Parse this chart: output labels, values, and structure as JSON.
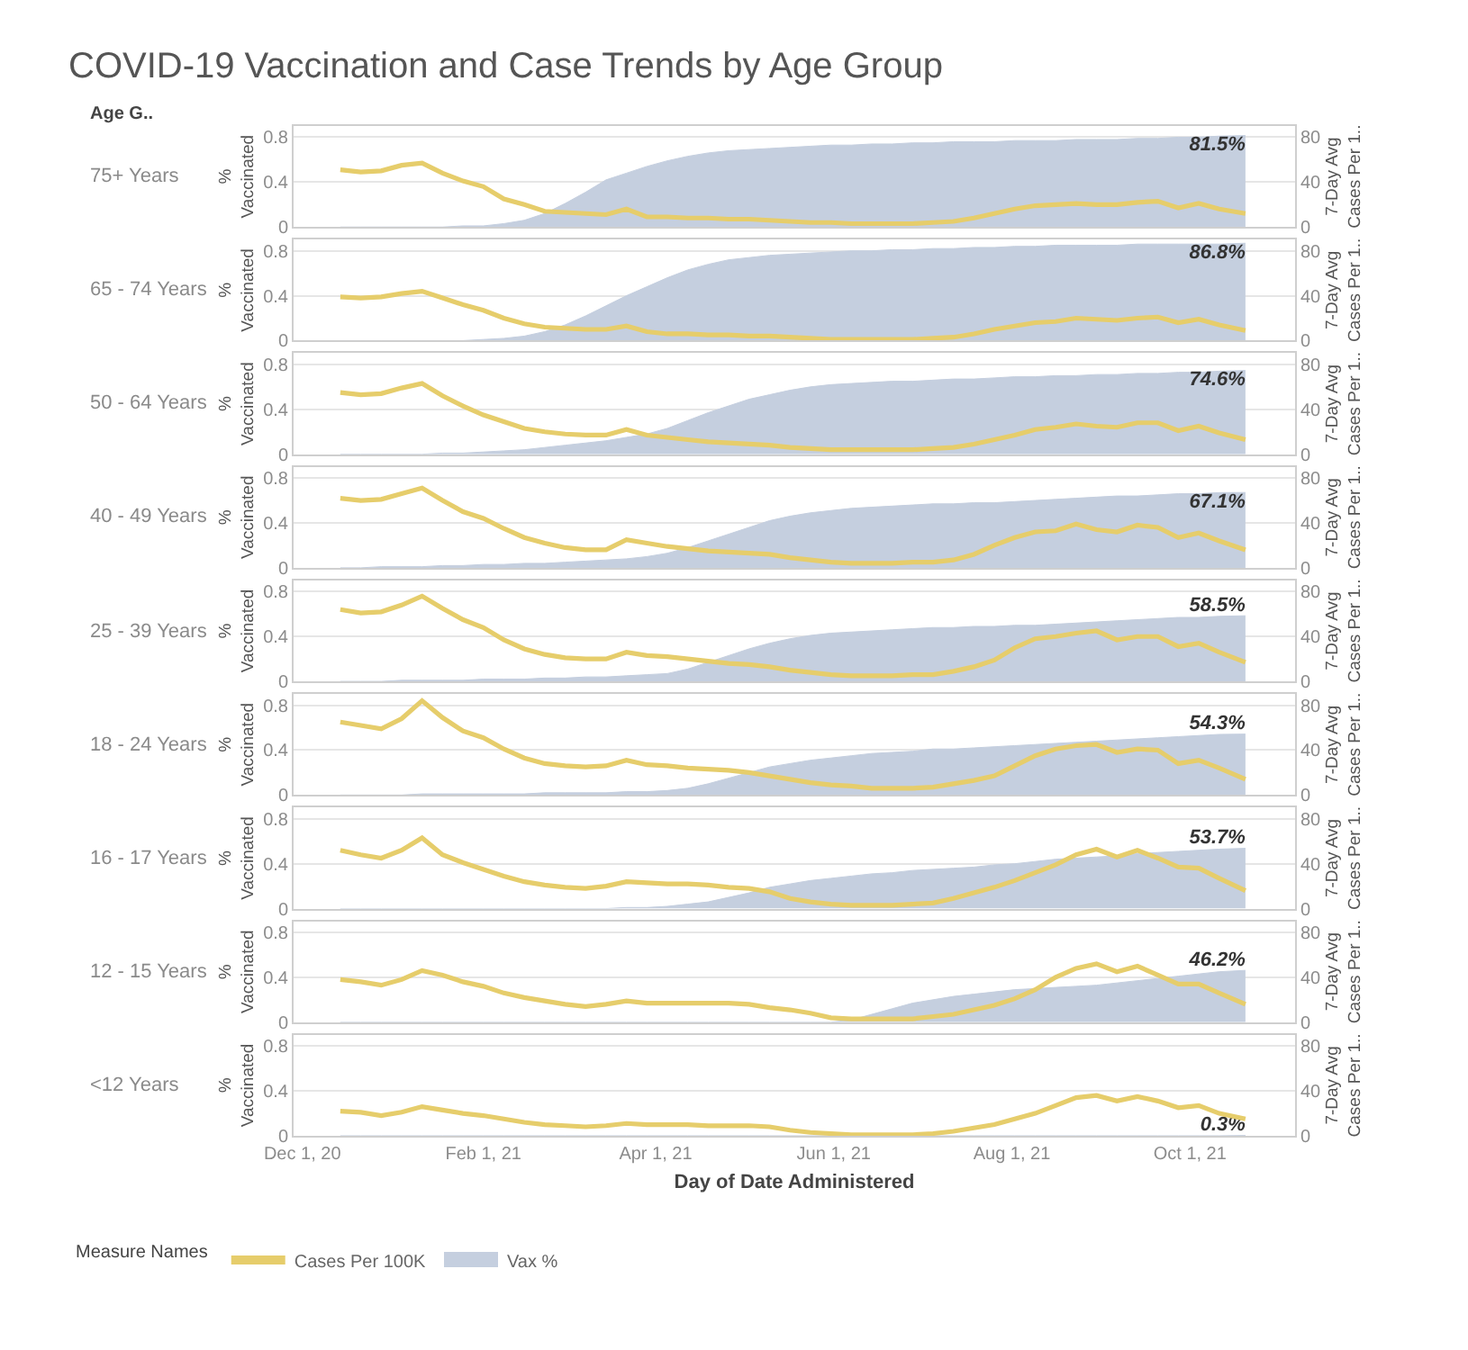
{
  "chart_data": [
    {
      "type": "area",
      "title": "COVID-19 Vaccination and Case Trends by Age Group",
      "subtitle": "75+ Years",
      "annotations": [
        "Age G.."
      ],
      "ylabel": "% Vaccinated",
      "y2label": "7-Day Avg Cases Per 1..",
      "x": [
        "2020-12-14",
        "2020-12-21",
        "2020-12-28",
        "2021-01-04",
        "2021-01-11",
        "2021-01-18",
        "2021-01-25",
        "2021-02-01",
        "2021-02-08",
        "2021-02-15",
        "2021-02-22",
        "2021-03-01",
        "2021-03-08",
        "2021-03-15",
        "2021-03-22",
        "2021-03-29",
        "2021-04-05",
        "2021-04-12",
        "2021-04-19",
        "2021-04-26",
        "2021-05-03",
        "2021-05-10",
        "2021-05-17",
        "2021-05-24",
        "2021-05-31",
        "2021-06-07",
        "2021-06-14",
        "2021-06-21",
        "2021-06-28",
        "2021-07-05",
        "2021-07-12",
        "2021-07-19",
        "2021-07-26",
        "2021-08-02",
        "2021-08-09",
        "2021-08-16",
        "2021-08-23",
        "2021-08-30",
        "2021-09-06",
        "2021-09-13",
        "2021-09-20",
        "2021-09-27",
        "2021-10-04",
        "2021-10-11",
        "2021-10-20"
      ],
      "series": [
        {
          "type": "line",
          "axis": "y2",
          "color": "#e6cd6b",
          "values": [
            51,
            49,
            50,
            55,
            57,
            48,
            41,
            36,
            25,
            20,
            14,
            13,
            12,
            11,
            16,
            9,
            9,
            8,
            8,
            7,
            7,
            6,
            5,
            4,
            4,
            3,
            3,
            3,
            3,
            4,
            5,
            8,
            12,
            16,
            19,
            20,
            21,
            20,
            20,
            22,
            23,
            17,
            21,
            16,
            12
          ]
        },
        {
          "color": "#c5cfdf",
          "values": [
            0,
            0,
            0,
            0,
            0,
            0,
            0.01,
            0.01,
            0.03,
            0.06,
            0.12,
            0.21,
            0.31,
            0.42,
            0.48,
            0.54,
            0.59,
            0.63,
            0.66,
            0.68,
            0.69,
            0.7,
            0.71,
            0.72,
            0.73,
            0.73,
            0.74,
            0.74,
            0.75,
            0.75,
            0.76,
            0.76,
            0.76,
            0.77,
            0.77,
            0.77,
            0.78,
            0.78,
            0.78,
            0.79,
            0.79,
            0.8,
            0.8,
            0.81,
            0.815
          ],
          "value_labels": [
            null,
            null,
            null,
            null,
            null,
            null,
            null,
            null,
            null,
            null,
            null,
            null,
            null,
            null,
            null,
            null,
            null,
            null,
            null,
            null,
            null,
            null,
            null,
            null,
            null,
            null,
            null,
            null,
            null,
            null,
            null,
            null,
            null,
            null,
            null,
            null,
            null,
            null,
            null,
            null,
            null,
            null,
            null,
            null,
            "81.5%"
          ]
        }
      ],
      "xlim": [
        "2020-11-28",
        "2021-11-06"
      ],
      "ylim": [
        0,
        0.9
      ],
      "yticks": [
        0,
        0.4,
        0.8
      ],
      "y2lim": [
        0,
        90
      ],
      "y2ticks": [
        0,
        40,
        80
      ],
      "grid": "y",
      "tick_labels": "y"
    },
    {
      "type": "area",
      "subtitle": "65 - 74 Years",
      "ylabel": "% Vaccinated",
      "y2label": "7-Day Avg Cases Per 1..",
      "x": [
        "2020-12-14",
        "2020-12-21",
        "2020-12-28",
        "2021-01-04",
        "2021-01-11",
        "2021-01-18",
        "2021-01-25",
        "2021-02-01",
        "2021-02-08",
        "2021-02-15",
        "2021-02-22",
        "2021-03-01",
        "2021-03-08",
        "2021-03-15",
        "2021-03-22",
        "2021-03-29",
        "2021-04-05",
        "2021-04-12",
        "2021-04-19",
        "2021-04-26",
        "2021-05-03",
        "2021-05-10",
        "2021-05-17",
        "2021-05-24",
        "2021-05-31",
        "2021-06-07",
        "2021-06-14",
        "2021-06-21",
        "2021-06-28",
        "2021-07-05",
        "2021-07-12",
        "2021-07-19",
        "2021-07-26",
        "2021-08-02",
        "2021-08-09",
        "2021-08-16",
        "2021-08-23",
        "2021-08-30",
        "2021-09-06",
        "2021-09-13",
        "2021-09-20",
        "2021-09-27",
        "2021-10-04",
        "2021-10-11",
        "2021-10-20"
      ],
      "series": [
        {
          "type": "line",
          "axis": "y2",
          "color": "#e6cd6b",
          "values": [
            39,
            38,
            39,
            42,
            44,
            38,
            32,
            27,
            20,
            15,
            12,
            11,
            10,
            10,
            13,
            8,
            6,
            6,
            5,
            5,
            4,
            4,
            3,
            2,
            1,
            1,
            1,
            1,
            1,
            2,
            3,
            6,
            10,
            13,
            16,
            17,
            20,
            19,
            18,
            20,
            21,
            16,
            19,
            14,
            9
          ]
        },
        {
          "color": "#c5cfdf",
          "values": [
            0,
            0,
            0,
            0,
            0,
            0,
            0,
            0.01,
            0.02,
            0.04,
            0.08,
            0.14,
            0.22,
            0.31,
            0.4,
            0.48,
            0.56,
            0.63,
            0.68,
            0.72,
            0.74,
            0.76,
            0.77,
            0.78,
            0.79,
            0.8,
            0.8,
            0.81,
            0.81,
            0.82,
            0.82,
            0.83,
            0.83,
            0.84,
            0.84,
            0.85,
            0.85,
            0.85,
            0.85,
            0.86,
            0.86,
            0.86,
            0.86,
            0.86,
            0.868
          ],
          "value_labels": [
            null,
            null,
            null,
            null,
            null,
            null,
            null,
            null,
            null,
            null,
            null,
            null,
            null,
            null,
            null,
            null,
            null,
            null,
            null,
            null,
            null,
            null,
            null,
            null,
            null,
            null,
            null,
            null,
            null,
            null,
            null,
            null,
            null,
            null,
            null,
            null,
            null,
            null,
            null,
            null,
            null,
            null,
            null,
            null,
            "86.8%"
          ]
        }
      ],
      "xlim": [
        "2020-11-28",
        "2021-11-06"
      ],
      "ylim": [
        0,
        0.9
      ],
      "yticks": [
        0,
        0.4,
        0.8
      ],
      "y2lim": [
        0,
        90
      ],
      "y2ticks": [
        0,
        40,
        80
      ],
      "grid": "y",
      "tick_labels": "y"
    },
    {
      "type": "area",
      "subtitle": "50 - 64 Years",
      "ylabel": "% Vaccinated",
      "y2label": "7-Day Avg Cases Per 1..",
      "x": [
        "2020-12-14",
        "2020-12-21",
        "2020-12-28",
        "2021-01-04",
        "2021-01-11",
        "2021-01-18",
        "2021-01-25",
        "2021-02-01",
        "2021-02-08",
        "2021-02-15",
        "2021-02-22",
        "2021-03-01",
        "2021-03-08",
        "2021-03-15",
        "2021-03-22",
        "2021-03-29",
        "2021-04-05",
        "2021-04-12",
        "2021-04-19",
        "2021-04-26",
        "2021-05-03",
        "2021-05-10",
        "2021-05-17",
        "2021-05-24",
        "2021-05-31",
        "2021-06-07",
        "2021-06-14",
        "2021-06-21",
        "2021-06-28",
        "2021-07-05",
        "2021-07-12",
        "2021-07-19",
        "2021-07-26",
        "2021-08-02",
        "2021-08-09",
        "2021-08-16",
        "2021-08-23",
        "2021-08-30",
        "2021-09-06",
        "2021-09-13",
        "2021-09-20",
        "2021-09-27",
        "2021-10-04",
        "2021-10-11",
        "2021-10-20"
      ],
      "series": [
        {
          "type": "line",
          "axis": "y2",
          "color": "#e6cd6b",
          "values": [
            55,
            53,
            54,
            59,
            63,
            52,
            43,
            35,
            29,
            23,
            20,
            18,
            17,
            17,
            22,
            17,
            15,
            13,
            11,
            10,
            9,
            8,
            6,
            5,
            4,
            4,
            4,
            4,
            4,
            5,
            6,
            9,
            13,
            17,
            22,
            24,
            27,
            25,
            24,
            28,
            28,
            21,
            25,
            19,
            13
          ]
        },
        {
          "color": "#c5cfdf",
          "values": [
            0,
            0,
            0,
            0,
            0,
            0.01,
            0.01,
            0.02,
            0.03,
            0.04,
            0.06,
            0.08,
            0.1,
            0.12,
            0.15,
            0.18,
            0.23,
            0.3,
            0.37,
            0.43,
            0.49,
            0.53,
            0.57,
            0.6,
            0.62,
            0.63,
            0.64,
            0.65,
            0.65,
            0.66,
            0.67,
            0.67,
            0.68,
            0.69,
            0.69,
            0.7,
            0.7,
            0.71,
            0.71,
            0.72,
            0.72,
            0.73,
            0.73,
            0.74,
            0.746
          ],
          "value_labels": [
            null,
            null,
            null,
            null,
            null,
            null,
            null,
            null,
            null,
            null,
            null,
            null,
            null,
            null,
            null,
            null,
            null,
            null,
            null,
            null,
            null,
            null,
            null,
            null,
            null,
            null,
            null,
            null,
            null,
            null,
            null,
            null,
            null,
            null,
            null,
            null,
            null,
            null,
            null,
            null,
            null,
            null,
            null,
            null,
            "74.6%"
          ]
        }
      ],
      "xlim": [
        "2020-11-28",
        "2021-11-06"
      ],
      "ylim": [
        0,
        0.9
      ],
      "yticks": [
        0,
        0.4,
        0.8
      ],
      "y2lim": [
        0,
        90
      ],
      "y2ticks": [
        0,
        40,
        80
      ],
      "grid": "y",
      "tick_labels": "y"
    },
    {
      "type": "area",
      "subtitle": "40 - 49 Years",
      "ylabel": "% Vaccinated",
      "y2label": "7-Day Avg Cases Per 1..",
      "x": [
        "2020-12-14",
        "2020-12-21",
        "2020-12-28",
        "2021-01-04",
        "2021-01-11",
        "2021-01-18",
        "2021-01-25",
        "2021-02-01",
        "2021-02-08",
        "2021-02-15",
        "2021-02-22",
        "2021-03-01",
        "2021-03-08",
        "2021-03-15",
        "2021-03-22",
        "2021-03-29",
        "2021-04-05",
        "2021-04-12",
        "2021-04-19",
        "2021-04-26",
        "2021-05-03",
        "2021-05-10",
        "2021-05-17",
        "2021-05-24",
        "2021-05-31",
        "2021-06-07",
        "2021-06-14",
        "2021-06-21",
        "2021-06-28",
        "2021-07-05",
        "2021-07-12",
        "2021-07-19",
        "2021-07-26",
        "2021-08-02",
        "2021-08-09",
        "2021-08-16",
        "2021-08-23",
        "2021-08-30",
        "2021-09-06",
        "2021-09-13",
        "2021-09-20",
        "2021-09-27",
        "2021-10-04",
        "2021-10-11",
        "2021-10-20"
      ],
      "series": [
        {
          "type": "line",
          "axis": "y2",
          "color": "#e6cd6b",
          "values": [
            62,
            60,
            61,
            66,
            71,
            60,
            50,
            44,
            35,
            27,
            22,
            18,
            16,
            16,
            25,
            22,
            19,
            17,
            15,
            14,
            13,
            12,
            9,
            7,
            5,
            4,
            4,
            4,
            5,
            5,
            7,
            12,
            20,
            27,
            32,
            33,
            39,
            34,
            32,
            38,
            36,
            27,
            31,
            24,
            16
          ]
        },
        {
          "color": "#c5cfdf",
          "values": [
            0,
            0,
            0.01,
            0.01,
            0.01,
            0.02,
            0.02,
            0.03,
            0.03,
            0.04,
            0.04,
            0.05,
            0.06,
            0.07,
            0.08,
            0.1,
            0.13,
            0.18,
            0.24,
            0.3,
            0.36,
            0.42,
            0.46,
            0.49,
            0.51,
            0.53,
            0.54,
            0.55,
            0.56,
            0.57,
            0.57,
            0.58,
            0.58,
            0.59,
            0.6,
            0.61,
            0.62,
            0.63,
            0.64,
            0.64,
            0.65,
            0.66,
            0.66,
            0.67,
            0.671
          ],
          "value_labels": [
            null,
            null,
            null,
            null,
            null,
            null,
            null,
            null,
            null,
            null,
            null,
            null,
            null,
            null,
            null,
            null,
            null,
            null,
            null,
            null,
            null,
            null,
            null,
            null,
            null,
            null,
            null,
            null,
            null,
            null,
            null,
            null,
            null,
            null,
            null,
            null,
            null,
            null,
            null,
            null,
            null,
            null,
            null,
            null,
            "67.1%"
          ]
        }
      ],
      "xlim": [
        "2020-11-28",
        "2021-11-06"
      ],
      "ylim": [
        0,
        0.9
      ],
      "yticks": [
        0,
        0.4,
        0.8
      ],
      "y2lim": [
        0,
        90
      ],
      "y2ticks": [
        0,
        40,
        80
      ],
      "grid": "y",
      "tick_labels": "y"
    },
    {
      "type": "area",
      "subtitle": "25 - 39 Years",
      "ylabel": "% Vaccinated",
      "y2label": "7-Day Avg Cases Per 1..",
      "x": [
        "2020-12-14",
        "2020-12-21",
        "2020-12-28",
        "2021-01-04",
        "2021-01-11",
        "2021-01-18",
        "2021-01-25",
        "2021-02-01",
        "2021-02-08",
        "2021-02-15",
        "2021-02-22",
        "2021-03-01",
        "2021-03-08",
        "2021-03-15",
        "2021-03-22",
        "2021-03-29",
        "2021-04-05",
        "2021-04-12",
        "2021-04-19",
        "2021-04-26",
        "2021-05-03",
        "2021-05-10",
        "2021-05-17",
        "2021-05-24",
        "2021-05-31",
        "2021-06-07",
        "2021-06-14",
        "2021-06-21",
        "2021-06-28",
        "2021-07-05",
        "2021-07-12",
        "2021-07-19",
        "2021-07-26",
        "2021-08-02",
        "2021-08-09",
        "2021-08-16",
        "2021-08-23",
        "2021-08-30",
        "2021-09-06",
        "2021-09-13",
        "2021-09-20",
        "2021-09-27",
        "2021-10-04",
        "2021-10-11",
        "2021-10-20"
      ],
      "series": [
        {
          "type": "line",
          "axis": "y2",
          "color": "#e6cd6b",
          "values": [
            64,
            61,
            62,
            68,
            76,
            65,
            55,
            48,
            37,
            29,
            24,
            21,
            20,
            20,
            26,
            23,
            22,
            20,
            18,
            16,
            15,
            13,
            10,
            8,
            6,
            5,
            5,
            5,
            6,
            6,
            9,
            13,
            19,
            30,
            38,
            40,
            43,
            45,
            37,
            40,
            40,
            31,
            34,
            26,
            17
          ]
        },
        {
          "color": "#c5cfdf",
          "values": [
            0,
            0,
            0,
            0.01,
            0.01,
            0.01,
            0.01,
            0.02,
            0.02,
            0.02,
            0.03,
            0.03,
            0.04,
            0.04,
            0.05,
            0.06,
            0.07,
            0.11,
            0.17,
            0.23,
            0.29,
            0.34,
            0.38,
            0.41,
            0.43,
            0.44,
            0.45,
            0.46,
            0.47,
            0.48,
            0.48,
            0.49,
            0.49,
            0.5,
            0.5,
            0.51,
            0.52,
            0.53,
            0.54,
            0.55,
            0.56,
            0.57,
            0.57,
            0.58,
            0.585
          ],
          "value_labels": [
            null,
            null,
            null,
            null,
            null,
            null,
            null,
            null,
            null,
            null,
            null,
            null,
            null,
            null,
            null,
            null,
            null,
            null,
            null,
            null,
            null,
            null,
            null,
            null,
            null,
            null,
            null,
            null,
            null,
            null,
            null,
            null,
            null,
            null,
            null,
            null,
            null,
            null,
            null,
            null,
            null,
            null,
            null,
            null,
            "58.5%"
          ]
        }
      ],
      "xlim": [
        "2020-11-28",
        "2021-11-06"
      ],
      "ylim": [
        0,
        0.9
      ],
      "yticks": [
        0,
        0.4,
        0.8
      ],
      "y2lim": [
        0,
        90
      ],
      "y2ticks": [
        0,
        40,
        80
      ],
      "grid": "y",
      "tick_labels": "y"
    },
    {
      "type": "area",
      "subtitle": "18 - 24 Years",
      "ylabel": "% Vaccinated",
      "y2label": "7-Day Avg Cases Per 1..",
      "x": [
        "2020-12-14",
        "2020-12-21",
        "2020-12-28",
        "2021-01-04",
        "2021-01-11",
        "2021-01-18",
        "2021-01-25",
        "2021-02-01",
        "2021-02-08",
        "2021-02-15",
        "2021-02-22",
        "2021-03-01",
        "2021-03-08",
        "2021-03-15",
        "2021-03-22",
        "2021-03-29",
        "2021-04-05",
        "2021-04-12",
        "2021-04-19",
        "2021-04-26",
        "2021-05-03",
        "2021-05-10",
        "2021-05-17",
        "2021-05-24",
        "2021-05-31",
        "2021-06-07",
        "2021-06-14",
        "2021-06-21",
        "2021-06-28",
        "2021-07-05",
        "2021-07-12",
        "2021-07-19",
        "2021-07-26",
        "2021-08-02",
        "2021-08-09",
        "2021-08-16",
        "2021-08-23",
        "2021-08-30",
        "2021-09-06",
        "2021-09-13",
        "2021-09-20",
        "2021-09-27",
        "2021-10-04",
        "2021-10-11",
        "2021-10-20"
      ],
      "series": [
        {
          "type": "line",
          "axis": "y2",
          "color": "#e6cd6b",
          "values": [
            65,
            62,
            59,
            68,
            84,
            69,
            57,
            51,
            41,
            33,
            28,
            26,
            25,
            26,
            31,
            27,
            26,
            24,
            23,
            22,
            20,
            17,
            14,
            11,
            9,
            8,
            6,
            6,
            6,
            7,
            10,
            13,
            17,
            26,
            35,
            41,
            44,
            45,
            38,
            41,
            40,
            28,
            31,
            24,
            14
          ]
        },
        {
          "color": "#c5cfdf",
          "values": [
            0,
            0,
            0,
            0,
            0.01,
            0.01,
            0.01,
            0.01,
            0.01,
            0.01,
            0.02,
            0.02,
            0.02,
            0.02,
            0.03,
            0.03,
            0.04,
            0.06,
            0.1,
            0.15,
            0.2,
            0.25,
            0.28,
            0.31,
            0.33,
            0.35,
            0.37,
            0.38,
            0.39,
            0.41,
            0.41,
            0.42,
            0.43,
            0.44,
            0.45,
            0.46,
            0.47,
            0.48,
            0.49,
            0.5,
            0.51,
            0.52,
            0.53,
            0.54,
            0.543
          ],
          "value_labels": [
            null,
            null,
            null,
            null,
            null,
            null,
            null,
            null,
            null,
            null,
            null,
            null,
            null,
            null,
            null,
            null,
            null,
            null,
            null,
            null,
            null,
            null,
            null,
            null,
            null,
            null,
            null,
            null,
            null,
            null,
            null,
            null,
            null,
            null,
            null,
            null,
            null,
            null,
            null,
            null,
            null,
            null,
            null,
            null,
            "54.3%"
          ]
        }
      ],
      "xlim": [
        "2020-11-28",
        "2021-11-06"
      ],
      "ylim": [
        0,
        0.9
      ],
      "yticks": [
        0,
        0.4,
        0.8
      ],
      "y2lim": [
        0,
        90
      ],
      "y2ticks": [
        0,
        40,
        80
      ],
      "grid": "y",
      "tick_labels": "y"
    },
    {
      "type": "area",
      "subtitle": "16 - 17 Years",
      "ylabel": "% Vaccinated",
      "y2label": "7-Day Avg Cases Per 1..",
      "x": [
        "2020-12-14",
        "2020-12-21",
        "2020-12-28",
        "2021-01-04",
        "2021-01-11",
        "2021-01-18",
        "2021-01-25",
        "2021-02-01",
        "2021-02-08",
        "2021-02-15",
        "2021-02-22",
        "2021-03-01",
        "2021-03-08",
        "2021-03-15",
        "2021-03-22",
        "2021-03-29",
        "2021-04-05",
        "2021-04-12",
        "2021-04-19",
        "2021-04-26",
        "2021-05-03",
        "2021-05-10",
        "2021-05-17",
        "2021-05-24",
        "2021-05-31",
        "2021-06-07",
        "2021-06-14",
        "2021-06-21",
        "2021-06-28",
        "2021-07-05",
        "2021-07-12",
        "2021-07-19",
        "2021-07-26",
        "2021-08-02",
        "2021-08-09",
        "2021-08-16",
        "2021-08-23",
        "2021-08-30",
        "2021-09-06",
        "2021-09-13",
        "2021-09-20",
        "2021-09-27",
        "2021-10-04",
        "2021-10-11",
        "2021-10-20"
      ],
      "series": [
        {
          "type": "line",
          "axis": "y2",
          "color": "#e6cd6b",
          "values": [
            52,
            48,
            45,
            52,
            63,
            48,
            41,
            35,
            29,
            24,
            21,
            19,
            18,
            20,
            24,
            23,
            22,
            22,
            21,
            19,
            18,
            15,
            9,
            6,
            4,
            3,
            3,
            3,
            4,
            5,
            9,
            14,
            19,
            25,
            32,
            39,
            48,
            53,
            46,
            52,
            45,
            37,
            36,
            27,
            16
          ]
        },
        {
          "color": "#c5cfdf",
          "values": [
            0,
            0,
            0,
            0,
            0,
            0,
            0,
            0,
            0,
            0,
            0,
            0,
            0,
            0,
            0.01,
            0.01,
            0.02,
            0.04,
            0.06,
            0.1,
            0.14,
            0.19,
            0.22,
            0.25,
            0.27,
            0.29,
            0.31,
            0.32,
            0.34,
            0.35,
            0.36,
            0.37,
            0.39,
            0.4,
            0.42,
            0.44,
            0.45,
            0.46,
            0.47,
            0.49,
            0.5,
            0.51,
            0.52,
            0.53,
            0.537
          ],
          "value_labels": [
            null,
            null,
            null,
            null,
            null,
            null,
            null,
            null,
            null,
            null,
            null,
            null,
            null,
            null,
            null,
            null,
            null,
            null,
            null,
            null,
            null,
            null,
            null,
            null,
            null,
            null,
            null,
            null,
            null,
            null,
            null,
            null,
            null,
            null,
            null,
            null,
            null,
            null,
            null,
            null,
            null,
            null,
            null,
            null,
            "53.7%"
          ]
        }
      ],
      "xlim": [
        "2020-11-28",
        "2021-11-06"
      ],
      "ylim": [
        0,
        0.9
      ],
      "yticks": [
        0,
        0.4,
        0.8
      ],
      "y2lim": [
        0,
        90
      ],
      "y2ticks": [
        0,
        40,
        80
      ],
      "grid": "y",
      "tick_labels": "y"
    },
    {
      "type": "area",
      "subtitle": "12 - 15 Years",
      "ylabel": "% Vaccinated",
      "y2label": "7-Day Avg Cases Per 1..",
      "x": [
        "2020-12-14",
        "2020-12-21",
        "2020-12-28",
        "2021-01-04",
        "2021-01-11",
        "2021-01-18",
        "2021-01-25",
        "2021-02-01",
        "2021-02-08",
        "2021-02-15",
        "2021-02-22",
        "2021-03-01",
        "2021-03-08",
        "2021-03-15",
        "2021-03-22",
        "2021-03-29",
        "2021-04-05",
        "2021-04-12",
        "2021-04-19",
        "2021-04-26",
        "2021-05-03",
        "2021-05-10",
        "2021-05-17",
        "2021-05-24",
        "2021-05-31",
        "2021-06-07",
        "2021-06-14",
        "2021-06-21",
        "2021-06-28",
        "2021-07-05",
        "2021-07-12",
        "2021-07-19",
        "2021-07-26",
        "2021-08-02",
        "2021-08-09",
        "2021-08-16",
        "2021-08-23",
        "2021-08-30",
        "2021-09-06",
        "2021-09-13",
        "2021-09-20",
        "2021-09-27",
        "2021-10-04",
        "2021-10-11",
        "2021-10-20"
      ],
      "series": [
        {
          "type": "line",
          "axis": "y2",
          "color": "#e6cd6b",
          "values": [
            38,
            36,
            33,
            38,
            46,
            42,
            36,
            32,
            26,
            22,
            19,
            16,
            14,
            16,
            19,
            17,
            17,
            17,
            17,
            17,
            16,
            13,
            11,
            8,
            4,
            3,
            3,
            3,
            3,
            5,
            7,
            11,
            15,
            21,
            29,
            40,
            48,
            52,
            45,
            50,
            42,
            34,
            34,
            26,
            16
          ]
        },
        {
          "color": "#c5cfdf",
          "values": [
            0,
            0,
            0,
            0,
            0,
            0,
            0,
            0,
            0,
            0,
            0,
            0,
            0,
            0,
            0,
            0,
            0,
            0,
            0,
            0,
            0,
            0,
            0,
            0,
            0,
            0.02,
            0.07,
            0.12,
            0.17,
            0.2,
            0.23,
            0.25,
            0.27,
            0.29,
            0.3,
            0.31,
            0.32,
            0.33,
            0.35,
            0.37,
            0.39,
            0.41,
            0.43,
            0.45,
            0.462
          ],
          "value_labels": [
            null,
            null,
            null,
            null,
            null,
            null,
            null,
            null,
            null,
            null,
            null,
            null,
            null,
            null,
            null,
            null,
            null,
            null,
            null,
            null,
            null,
            null,
            null,
            null,
            null,
            null,
            null,
            null,
            null,
            null,
            null,
            null,
            null,
            null,
            null,
            null,
            null,
            null,
            null,
            null,
            null,
            null,
            null,
            null,
            "46.2%"
          ]
        }
      ],
      "xlim": [
        "2020-11-28",
        "2021-11-06"
      ],
      "ylim": [
        0,
        0.9
      ],
      "yticks": [
        0,
        0.4,
        0.8
      ],
      "y2lim": [
        0,
        90
      ],
      "y2ticks": [
        0,
        40,
        80
      ],
      "grid": "y",
      "tick_labels": "y"
    },
    {
      "type": "area",
      "subtitle": "<12 Years",
      "ylabel": "% Vaccinated",
      "y2label": "7-Day Avg Cases Per 1..",
      "xlabel": "Day of Date Administered",
      "legend": "bottom",
      "legend_title": "Measure Names",
      "x": [
        "2020-12-14",
        "2020-12-21",
        "2020-12-28",
        "2021-01-04",
        "2021-01-11",
        "2021-01-18",
        "2021-01-25",
        "2021-02-01",
        "2021-02-08",
        "2021-02-15",
        "2021-02-22",
        "2021-03-01",
        "2021-03-08",
        "2021-03-15",
        "2021-03-22",
        "2021-03-29",
        "2021-04-05",
        "2021-04-12",
        "2021-04-19",
        "2021-04-26",
        "2021-05-03",
        "2021-05-10",
        "2021-05-17",
        "2021-05-24",
        "2021-05-31",
        "2021-06-07",
        "2021-06-14",
        "2021-06-21",
        "2021-06-28",
        "2021-07-05",
        "2021-07-12",
        "2021-07-19",
        "2021-07-26",
        "2021-08-02",
        "2021-08-09",
        "2021-08-16",
        "2021-08-23",
        "2021-08-30",
        "2021-09-06",
        "2021-09-13",
        "2021-09-20",
        "2021-09-27",
        "2021-10-04",
        "2021-10-11",
        "2021-10-20"
      ],
      "series": [
        {
          "name": "Cases Per 100K",
          "type": "line",
          "axis": "y2",
          "color": "#e6cd6b",
          "values": [
            22,
            21,
            18,
            21,
            26,
            23,
            20,
            18,
            15,
            12,
            10,
            9,
            8,
            9,
            11,
            10,
            10,
            10,
            9,
            9,
            9,
            8,
            5,
            3,
            2,
            1,
            1,
            1,
            1,
            2,
            4,
            7,
            10,
            15,
            20,
            27,
            34,
            36,
            31,
            35,
            31,
            25,
            27,
            20,
            15
          ]
        },
        {
          "name": "Vax %",
          "color": "#c5cfdf",
          "values": [
            0,
            0,
            0,
            0,
            0,
            0,
            0,
            0,
            0,
            0,
            0,
            0,
            0,
            0,
            0,
            0,
            0,
            0,
            0,
            0,
            0,
            0,
            0,
            0,
            0,
            0,
            0,
            0,
            0,
            0,
            0,
            0,
            0,
            0,
            0,
            0,
            0,
            0,
            0,
            0,
            0,
            0,
            0,
            0,
            0.003
          ],
          "value_labels": [
            null,
            null,
            null,
            null,
            null,
            null,
            null,
            null,
            null,
            null,
            null,
            null,
            null,
            null,
            null,
            null,
            null,
            null,
            null,
            null,
            null,
            null,
            null,
            null,
            null,
            null,
            null,
            null,
            null,
            null,
            null,
            null,
            null,
            null,
            null,
            null,
            null,
            null,
            null,
            null,
            null,
            null,
            null,
            null,
            "0.3%"
          ]
        }
      ],
      "xlim": [
        "2020-11-28",
        "2021-11-06"
      ],
      "xticks": [
        {
          "value": "2020-12-01",
          "label": "Dec 1, 20"
        },
        {
          "value": "2021-02-01",
          "label": "Feb 1, 21"
        },
        {
          "value": "2021-04-01",
          "label": "Apr 1, 21"
        },
        {
          "value": "2021-06-01",
          "label": "Jun 1, 21"
        },
        {
          "value": "2021-08-01",
          "label": "Aug 1, 21"
        },
        {
          "value": "2021-10-01",
          "label": "Oct 1, 21"
        }
      ],
      "ylim": [
        0,
        0.9
      ],
      "yticks": [
        0,
        0.4,
        0.8
      ],
      "y2lim": [
        0,
        90
      ],
      "y2ticks": [
        0,
        40,
        80
      ],
      "grid": "y"
    }
  ]
}
